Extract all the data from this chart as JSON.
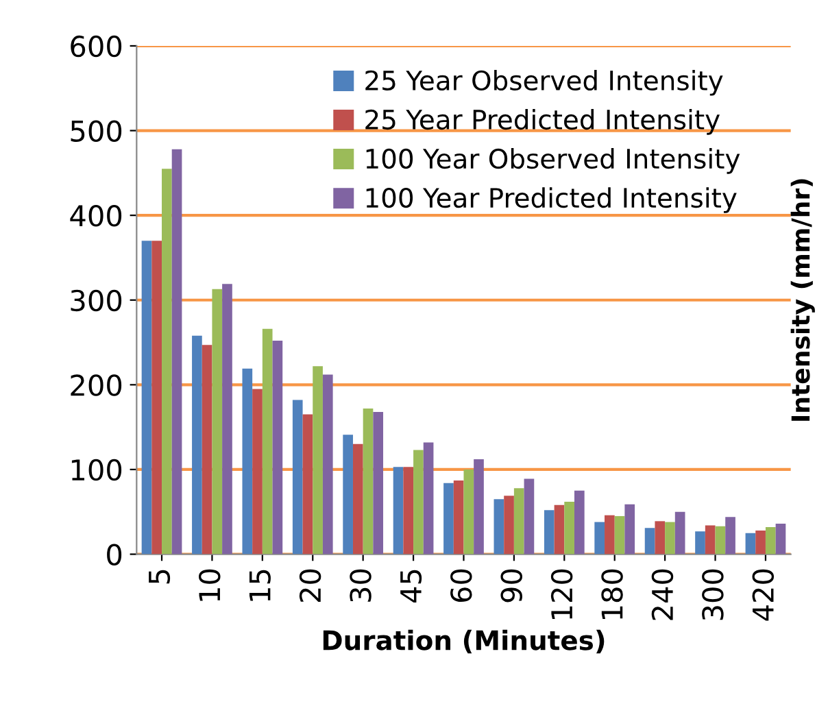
{
  "chart_data": {
    "type": "bar",
    "xlabel": "Duration (Minutes)",
    "ylabel": "Intensity (mm/hr)",
    "categories": [
      "5",
      "10",
      "15",
      "20",
      "30",
      "45",
      "60",
      "90",
      "120",
      "180",
      "240",
      "300",
      "420"
    ],
    "series": [
      {
        "name": "25 Year Observed Intensity",
        "color": "#4f81bd",
        "values": [
          370,
          258,
          219,
          182,
          141,
          103,
          84,
          65,
          52,
          38,
          31,
          27,
          25
        ]
      },
      {
        "name": "25 Year Predicted Intensity",
        "color": "#c0504d",
        "values": [
          370,
          247,
          195,
          165,
          130,
          103,
          87,
          69,
          58,
          46,
          39,
          34,
          28
        ]
      },
      {
        "name": "100 Year Observed Intensity",
        "color": "#9bbb59",
        "values": [
          455,
          313,
          266,
          222,
          172,
          123,
          100,
          78,
          62,
          45,
          38,
          33,
          32
        ]
      },
      {
        "name": "100 Year Predicted Intensity",
        "color": "#8064a2",
        "values": [
          478,
          319,
          252,
          212,
          168,
          132,
          112,
          89,
          75,
          59,
          50,
          44,
          36
        ]
      }
    ],
    "ylim": [
      0,
      600
    ],
    "yticks": [
      0,
      100,
      200,
      300,
      400,
      500,
      600
    ],
    "grid": "y",
    "legend": "top right"
  }
}
